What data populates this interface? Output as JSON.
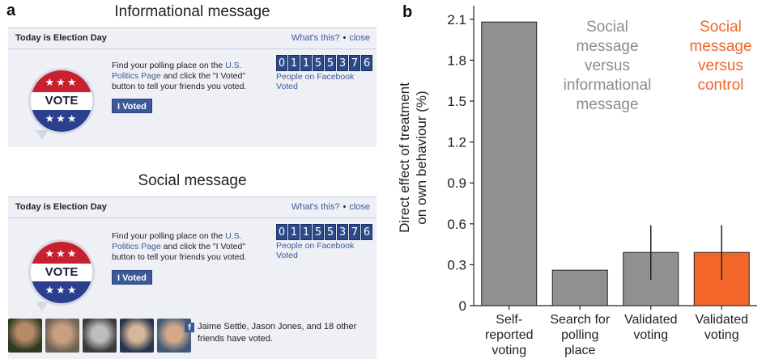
{
  "panel_a": {
    "letter": "a",
    "informational": {
      "title": "Informational message",
      "header_day": "Today is Election Day",
      "whats_this": "What's this?",
      "close": "close",
      "text_pre": "Find your polling place on the ",
      "text_link": "U.S. Politics Page",
      "text_post": " and click the \"I Voted\" button to tell your friends you voted.",
      "button": "I Voted",
      "counter_digits": [
        "0",
        "1",
        "1",
        "5",
        "5",
        "3",
        "7",
        "6"
      ],
      "counter_caption": "People on Facebook Voted",
      "badge_vote": "VOTE",
      "badge_stars": "★★★"
    },
    "social": {
      "title": "Social message",
      "header_day": "Today is Election Day",
      "whats_this": "What's this?",
      "close": "close",
      "text_pre": "Find your polling place on the ",
      "text_link": "U.S. Politics Page",
      "text_post": " and click the \"I Voted\" button to tell your friends you voted.",
      "button": "I Voted",
      "counter_digits": [
        "0",
        "1",
        "1",
        "5",
        "5",
        "3",
        "7",
        "6"
      ],
      "counter_caption": "People on Facebook Voted",
      "badge_vote": "VOTE",
      "badge_stars": "★★★",
      "friends_text": "Jaime Settle, Jason Jones, and 18 other friends have voted.",
      "fb_glyph": "f"
    }
  },
  "colors": {
    "fb_blue": "#3b5998",
    "bar_gray": "#909090",
    "bar_orange": "#f2662a",
    "legend_gray": "#8c8c8c"
  },
  "chart_data": {
    "panel_letter": "b",
    "type": "bar",
    "ylabel": "Direct effect of treatment\non own behaviour (%)",
    "ylim": [
      0,
      2.2
    ],
    "yticks": [
      0,
      0.3,
      0.6,
      0.9,
      1.2,
      1.5,
      1.8,
      2.1
    ],
    "ytick_labels": [
      "0",
      "0.3",
      "0.6",
      "0.9",
      "1.2",
      "1.5",
      "1.8",
      "2.1"
    ],
    "categories": [
      "Self-\nreported\nvoting",
      "Search for\npolling\nplace",
      "Validated\nvoting",
      "Validated\nvoting"
    ],
    "values": [
      2.08,
      0.26,
      0.39,
      0.39
    ],
    "error_low": [
      null,
      null,
      0.19,
      0.19
    ],
    "error_high": [
      null,
      null,
      0.59,
      0.59
    ],
    "bar_colors": [
      "#909090",
      "#909090",
      "#909090",
      "#f2662a"
    ],
    "legend_gray_label": "Social\nmessage\nversus\ninformational\nmessage",
    "legend_orange_label": "Social\nmessage\nversus\ncontrol",
    "grid": false
  }
}
